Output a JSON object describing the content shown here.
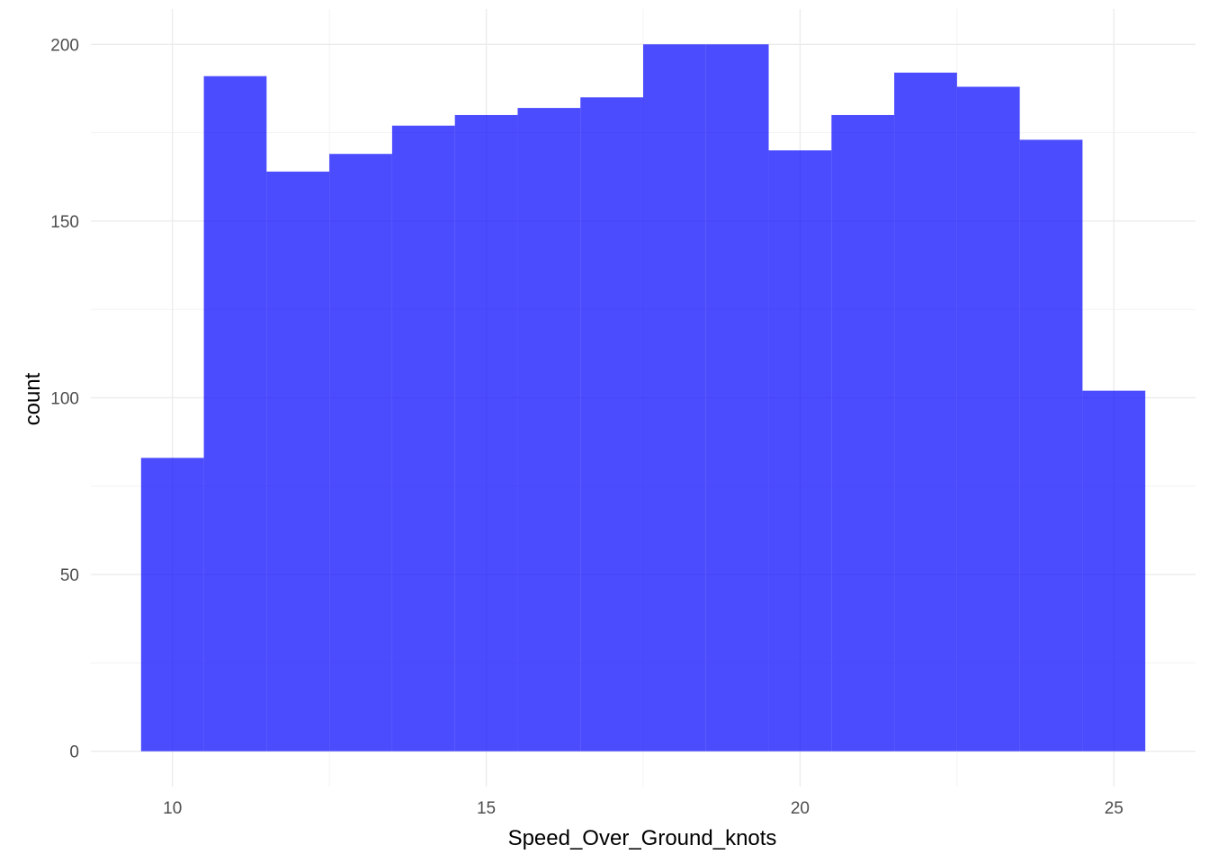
{
  "chart_data": {
    "type": "bar",
    "subtype": "histogram",
    "title": "",
    "xlabel": "Speed_Over_Ground_knots",
    "ylabel": "count",
    "bin_width": 1,
    "bins": [
      {
        "x0": 9.5,
        "x1": 10.5,
        "count": 83
      },
      {
        "x0": 10.5,
        "x1": 11.5,
        "count": 191
      },
      {
        "x0": 11.5,
        "x1": 12.5,
        "count": 164
      },
      {
        "x0": 12.5,
        "x1": 13.5,
        "count": 169
      },
      {
        "x0": 13.5,
        "x1": 14.5,
        "count": 177
      },
      {
        "x0": 14.5,
        "x1": 15.5,
        "count": 180
      },
      {
        "x0": 15.5,
        "x1": 16.5,
        "count": 182
      },
      {
        "x0": 16.5,
        "x1": 17.5,
        "count": 185
      },
      {
        "x0": 17.5,
        "x1": 18.5,
        "count": 200
      },
      {
        "x0": 18.5,
        "x1": 19.5,
        "count": 200
      },
      {
        "x0": 19.5,
        "x1": 20.5,
        "count": 170
      },
      {
        "x0": 20.5,
        "x1": 21.5,
        "count": 180
      },
      {
        "x0": 21.5,
        "x1": 22.5,
        "count": 192
      },
      {
        "x0": 22.5,
        "x1": 23.5,
        "count": 188
      },
      {
        "x0": 23.5,
        "x1": 24.5,
        "count": 173
      },
      {
        "x0": 24.5,
        "x1": 25.5,
        "count": 102
      }
    ],
    "xlim": [
      8.7,
      26.3
    ],
    "ylim": [
      -10,
      210
    ],
    "x_ticks": [
      10,
      15,
      20,
      25
    ],
    "y_ticks": [
      0,
      50,
      100,
      150,
      200
    ],
    "grid": true,
    "legend": "none",
    "colors": {
      "bar": "#0000ff",
      "bar_opacity": 0.7,
      "grid_major": "#ebebeb",
      "grid_minor": "#f3f3f3",
      "tick_text": "#4d4d4d",
      "title_text": "#000000"
    }
  }
}
